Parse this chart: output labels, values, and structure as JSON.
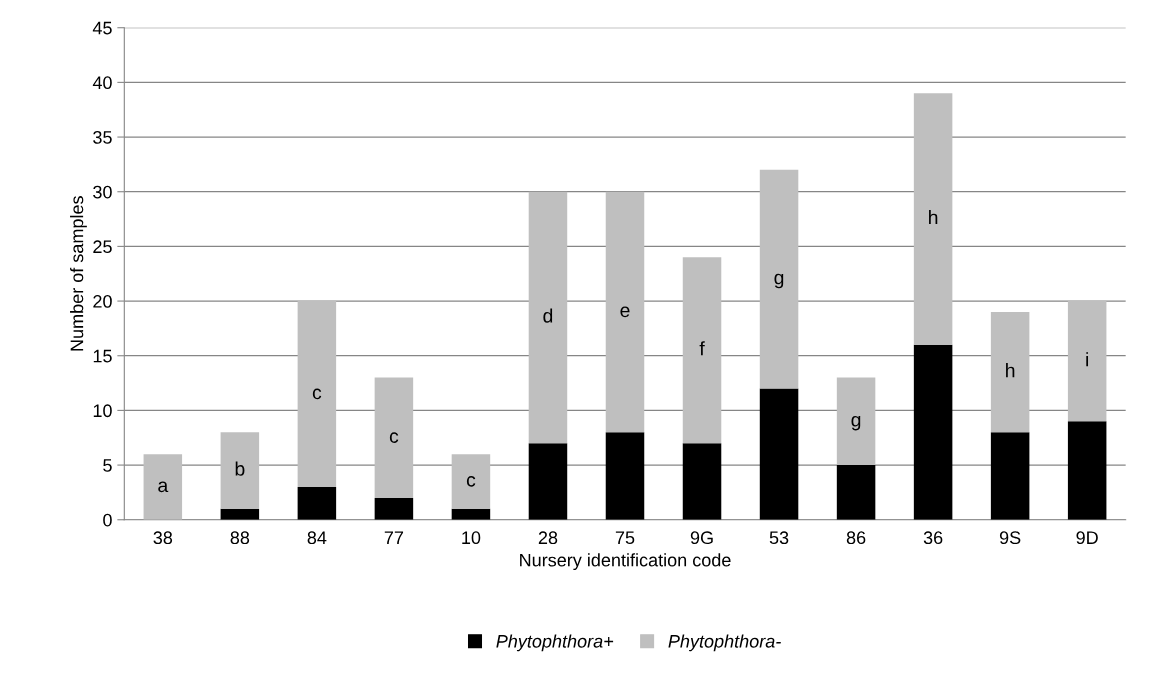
{
  "chart_data": {
    "type": "bar",
    "stacked": true,
    "xlabel": "Nursery identification code",
    "ylabel": "Number of samples",
    "categories": [
      "38",
      "88",
      "84",
      "77",
      "10",
      "28",
      "75",
      "9G",
      "53",
      "86",
      "36",
      "9S",
      "9D"
    ],
    "series": [
      {
        "name": "Phytophthora+",
        "color": "#000000",
        "values": [
          0,
          1,
          3,
          2,
          1,
          7,
          8,
          7,
          12,
          5,
          16,
          8,
          9
        ]
      },
      {
        "name": "Phytophthora-",
        "color": "#bfbfbf",
        "values": [
          6,
          7,
          17,
          11,
          5,
          23,
          22,
          17,
          20,
          8,
          23,
          11,
          11
        ]
      }
    ],
    "annotations": [
      "a",
      "b",
      "c",
      "c",
      "c",
      "d",
      "e",
      "f",
      "g",
      "g",
      "h",
      "h",
      "i"
    ],
    "ylim": [
      0,
      45
    ],
    "yticks": [
      0,
      5,
      10,
      15,
      20,
      25,
      30,
      35,
      40,
      45
    ],
    "grid": "y",
    "legend": "bottom"
  }
}
